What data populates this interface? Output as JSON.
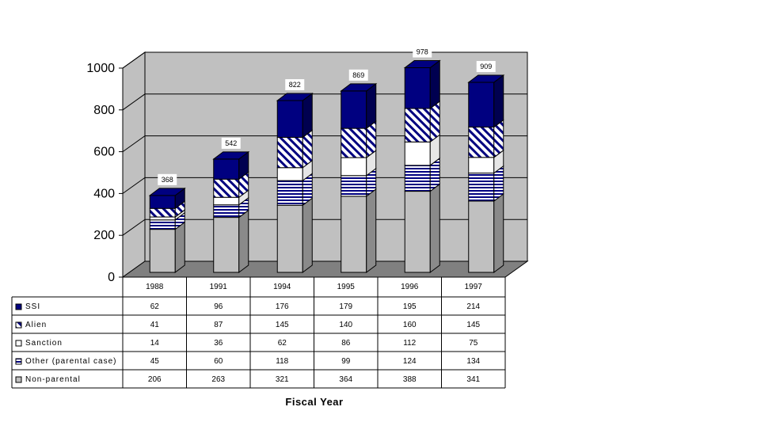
{
  "chart_data": {
    "type": "bar",
    "stacked": true,
    "three_d": true,
    "xlabel": "Fiscal Year",
    "ylabel": "",
    "ylim": [
      0,
      1000
    ],
    "yticks": [
      "0",
      "200",
      "400",
      "600",
      "800",
      "1000"
    ],
    "grid": true,
    "legend": "data table below chart",
    "categories": [
      "1988",
      "1991",
      "1994",
      "1995",
      "1996",
      "1997"
    ],
    "totals": [
      "368",
      "542",
      "822",
      "869",
      "978",
      "909"
    ],
    "series": [
      {
        "name": "Non-parental",
        "values": [
          206,
          263,
          321,
          364,
          388,
          341
        ],
        "pattern": "solid",
        "color": "#c0c0c0"
      },
      {
        "name": "Other (parental case)",
        "values": [
          45,
          60,
          118,
          99,
          124,
          134
        ],
        "pattern": "hstripe",
        "color": "#000080"
      },
      {
        "name": "Sanction",
        "values": [
          14,
          36,
          62,
          86,
          112,
          75
        ],
        "pattern": "solid",
        "color": "#ffffff"
      },
      {
        "name": "Alien",
        "values": [
          41,
          87,
          145,
          140,
          160,
          145
        ],
        "pattern": "diagonal",
        "color": "#000080"
      },
      {
        "name": "SSI",
        "values": [
          62,
          96,
          176,
          179,
          195,
          214
        ],
        "pattern": "solid",
        "color": "#000080"
      }
    ],
    "table_row_order": [
      "SSI",
      "Alien",
      "Sanction",
      "Other (parental case)",
      "Non-parental"
    ]
  },
  "colors": {
    "wall": "#c0c0c0",
    "floor": "#808080",
    "navy": "#000080",
    "gray": "#c0c0c0"
  }
}
